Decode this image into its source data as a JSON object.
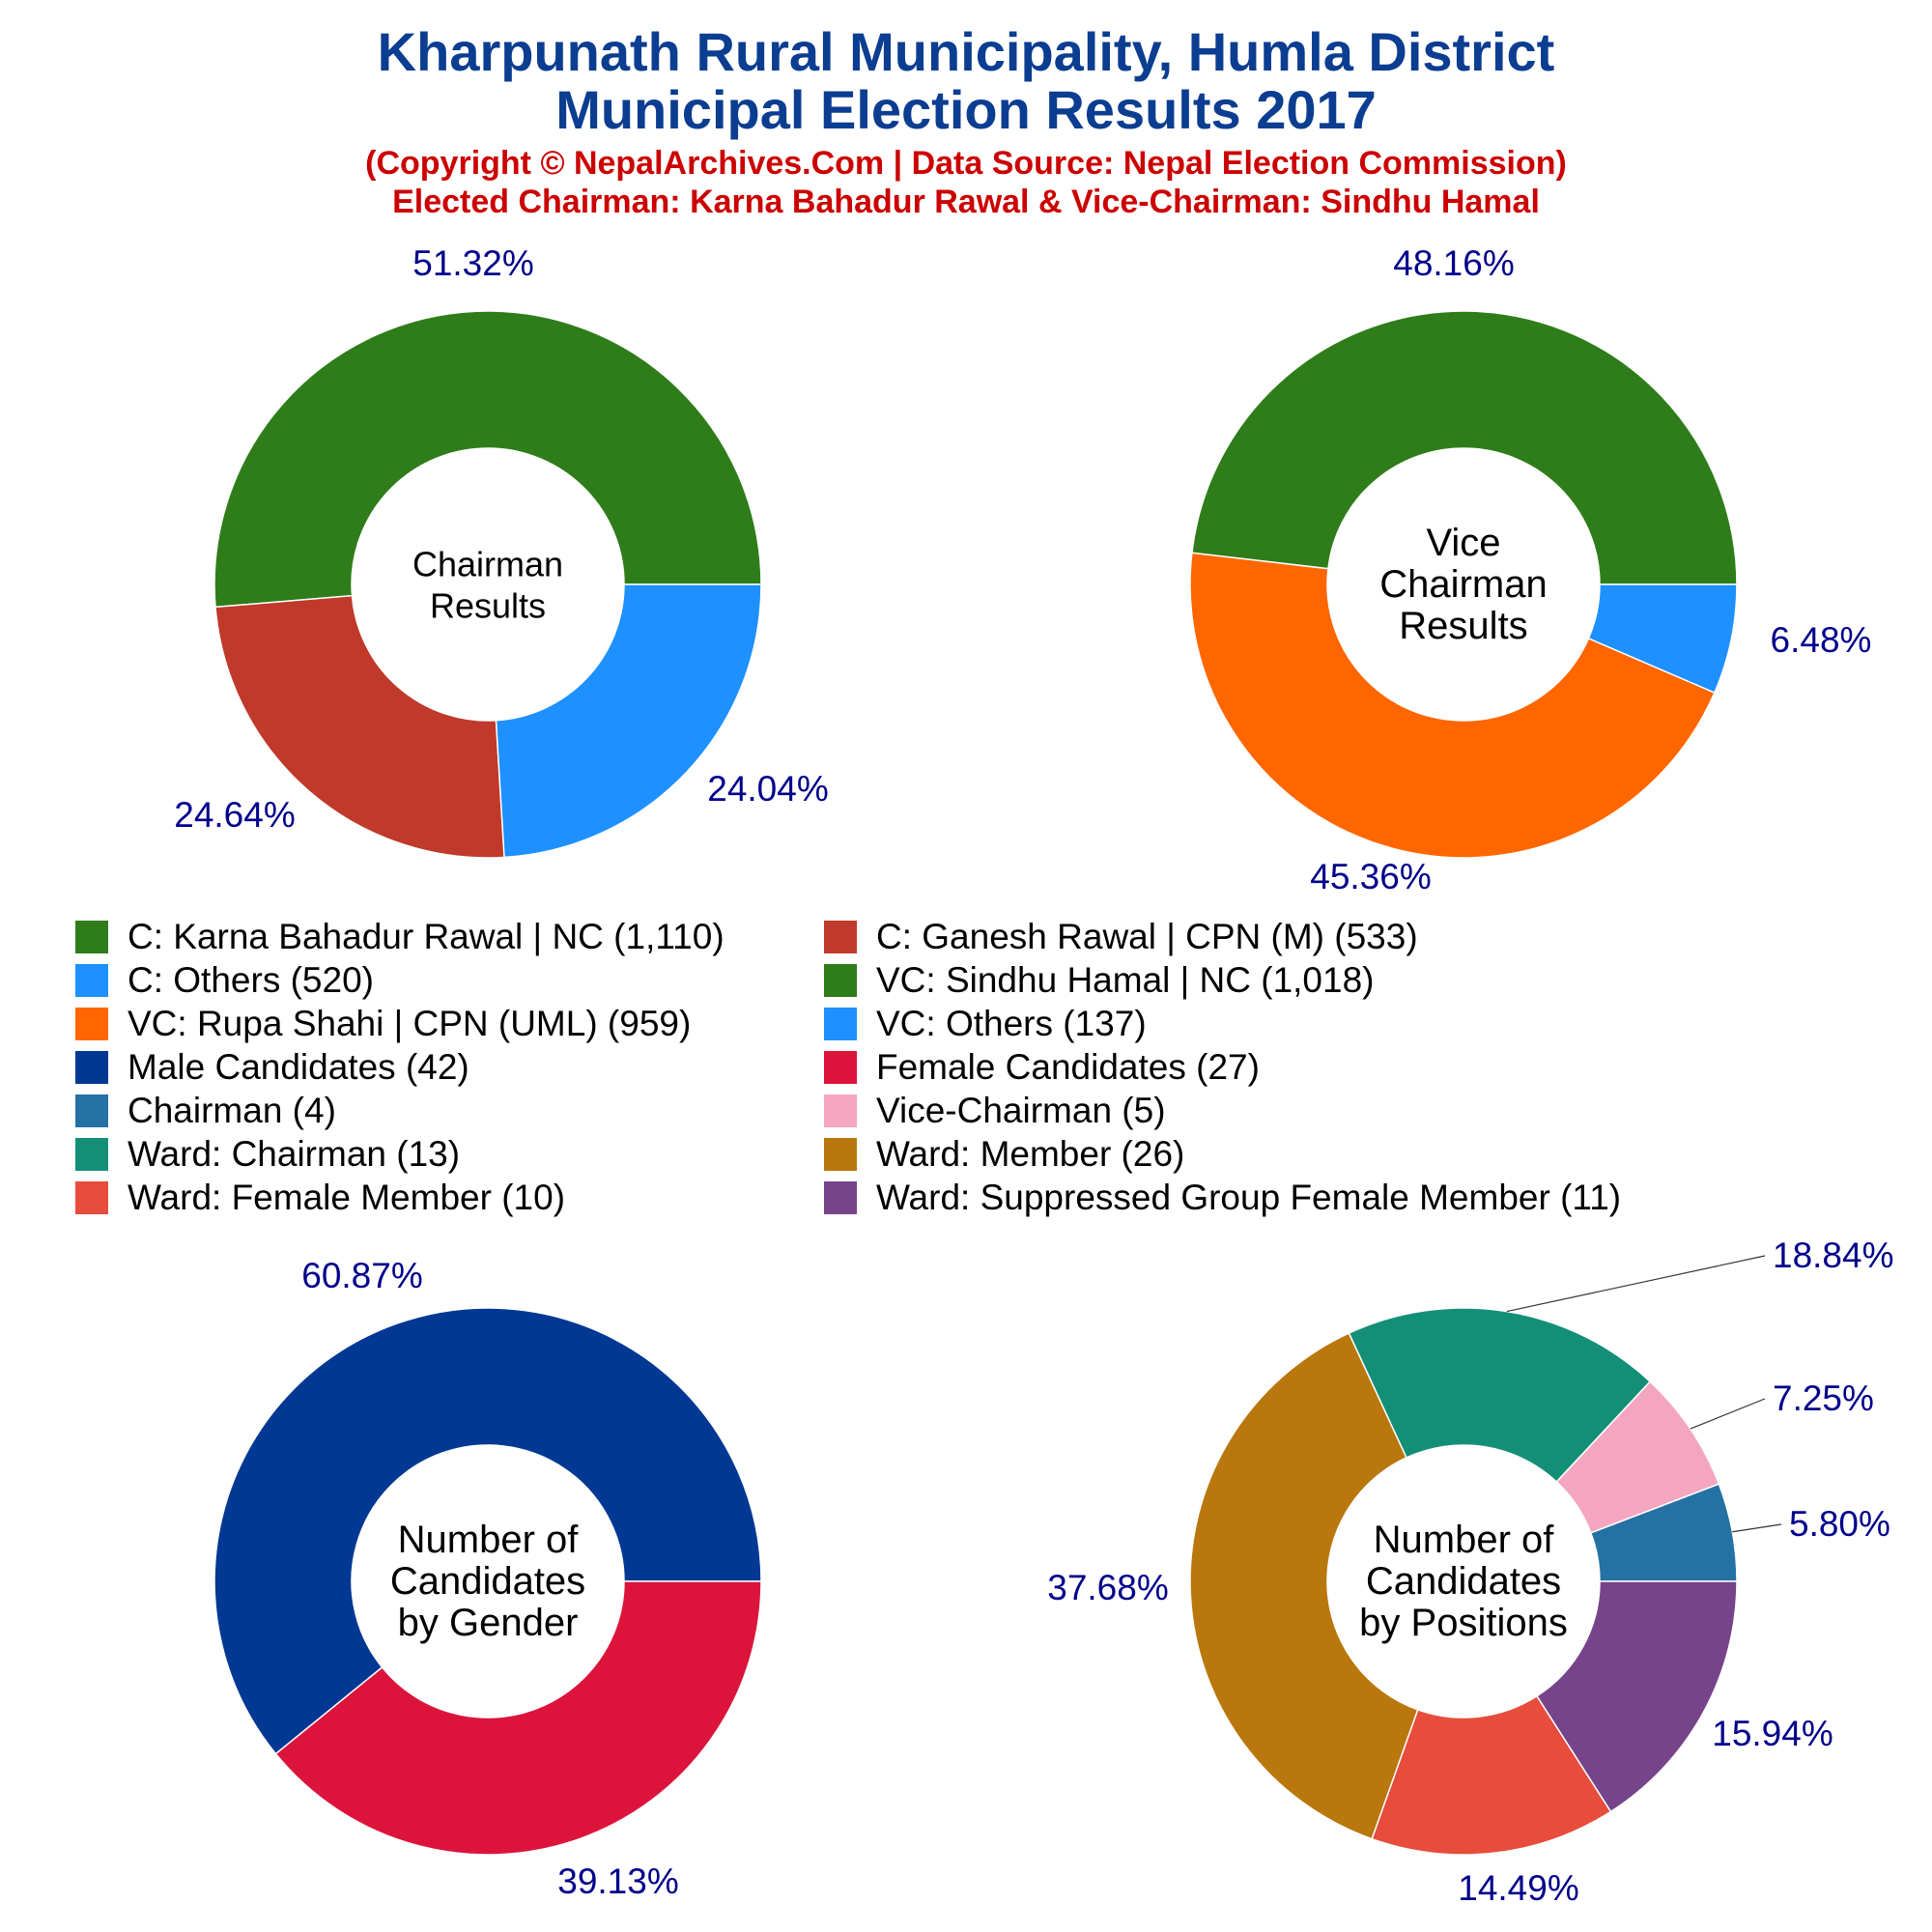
{
  "header": {
    "title_line1": "Kharpunath Rural Municipality, Humla District",
    "title_line2": "Municipal Election Results 2017",
    "subtitle_line1": "(Copyright © NepalArchives.Com | Data Source: Nepal Election Commission)",
    "subtitle_line2": "Elected Chairman: Karna Bahadur Rawal & Vice-Chairman: Sindhu Hamal"
  },
  "colors": {
    "title": "#0b3d91",
    "subtitle": "#cc0000",
    "pct_label": "#00008b"
  },
  "legend": {
    "items": [
      {
        "label": "C: Karna Bahadur Rawal | NC (1,110)",
        "color": "#2e7d1a"
      },
      {
        "label": "C: Ganesh Rawal | CPN (M) (533)",
        "color": "#c0392b"
      },
      {
        "label": "C: Others (520)",
        "color": "#1e90ff"
      },
      {
        "label": "VC: Sindhu Hamal | NC (1,018)",
        "color": "#2e7d1a"
      },
      {
        "label": "VC: Rupa Shahi | CPN (UML) (959)",
        "color": "#ff6600"
      },
      {
        "label": "VC: Others (137)",
        "color": "#1e90ff"
      },
      {
        "label": "Male Candidates (42)",
        "color": "#003893"
      },
      {
        "label": "Female Candidates (27)",
        "color": "#dc143c"
      },
      {
        "label": "Chairman (4)",
        "color": "#2471a3"
      },
      {
        "label": "Vice-Chairman (5)",
        "color": "#f4a6c0"
      },
      {
        "label": "Ward: Chairman (13)",
        "color": "#148f77"
      },
      {
        "label": "Ward: Member (26)",
        "color": "#b9770e"
      },
      {
        "label": "Ward: Female Member (10)",
        "color": "#e74c3c"
      },
      {
        "label": "Ward: Suppressed Group Female Member (11)",
        "color": "#76448a"
      }
    ]
  },
  "chart_data": [
    {
      "type": "pie",
      "center_label": [
        "Chairman",
        "Results"
      ],
      "categories": [
        "C: Karna Bahadur Rawal | NC",
        "C: Ganesh Rawal | CPN (M)",
        "C: Others"
      ],
      "values": [
        1110,
        533,
        520
      ],
      "percent_labels": [
        "51.32%",
        "24.64%",
        "24.04%"
      ],
      "colors": [
        "#2e7d1a",
        "#c0392b",
        "#1e90ff"
      ]
    },
    {
      "type": "pie",
      "center_label": [
        "Vice",
        "Chairman",
        "Results"
      ],
      "categories": [
        "VC: Sindhu Hamal | NC",
        "VC: Rupa Shahi | CPN (UML)",
        "VC: Others"
      ],
      "values": [
        1018,
        959,
        137
      ],
      "percent_labels": [
        "48.16%",
        "45.36%",
        "6.48%"
      ],
      "colors": [
        "#2e7d1a",
        "#ff6600",
        "#1e90ff"
      ]
    },
    {
      "type": "pie",
      "center_label": [
        "Number of",
        "Candidates",
        "by Gender"
      ],
      "categories": [
        "Male Candidates",
        "Female Candidates"
      ],
      "values": [
        42,
        27
      ],
      "percent_labels": [
        "60.87%",
        "39.13%"
      ],
      "colors": [
        "#003893",
        "#dc143c"
      ]
    },
    {
      "type": "pie",
      "center_label": [
        "Number of",
        "Candidates",
        "by Positions"
      ],
      "categories": [
        "Chairman",
        "Vice-Chairman",
        "Ward: Chairman",
        "Ward: Member",
        "Ward: Female Member",
        "Ward: Suppressed Group Female Member"
      ],
      "values": [
        4,
        5,
        13,
        26,
        10,
        11
      ],
      "percent_labels": [
        "5.80%",
        "7.25%",
        "18.84%",
        "37.68%",
        "14.49%",
        "15.94%"
      ],
      "colors": [
        "#2471a3",
        "#f4a6c0",
        "#148f77",
        "#b9770e",
        "#e74c3c",
        "#76448a"
      ]
    }
  ]
}
